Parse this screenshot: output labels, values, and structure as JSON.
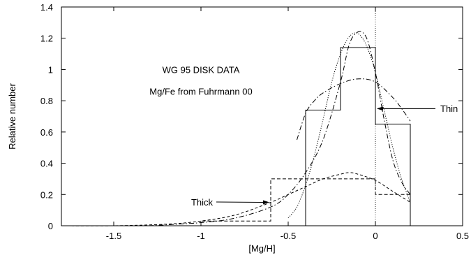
{
  "chart_data": {
    "type": "line",
    "title": "",
    "xlabel": "[Mg/H]",
    "ylabel": "Relative number",
    "xlim": [
      -1.8,
      0.5
    ],
    "ylim": [
      0,
      1.4
    ],
    "x_ticks": [
      -1.5,
      -1,
      -0.5,
      0,
      0.5
    ],
    "x_tick_labels": [
      "-1.5",
      "-1",
      "-0.5",
      "0",
      "0.5"
    ],
    "y_ticks": [
      0,
      0.2,
      0.4,
      0.6,
      0.8,
      1,
      1.2,
      1.4
    ],
    "y_tick_labels": [
      "0",
      "0.2",
      "0.4",
      "0.6",
      "0.8",
      "1",
      "1.2",
      "1.4"
    ],
    "grid": false,
    "legend": "none",
    "annotations": [
      {
        "text": "WG 95 DISK DATA"
      },
      {
        "text": "Mg/Fe from Fuhrmann 00"
      },
      {
        "text": "Thin",
        "arrow_to": [
          0.0,
          0.75
        ]
      },
      {
        "text": "Thick",
        "arrow_to": [
          -0.6,
          0.15
        ]
      }
    ],
    "reference_lines": [
      {
        "x": 0,
        "style": "dotted"
      }
    ],
    "series": [
      {
        "style": "solid-step",
        "bin_edges": [
          -0.4,
          -0.2,
          0.0,
          0.2
        ],
        "values": [
          0.74,
          1.14,
          0.65
        ]
      },
      {
        "style": "dashed-step",
        "bin_edges": [
          -1.0,
          -0.6,
          -0.4,
          -0.2,
          0.0,
          0.2
        ],
        "values": [
          0.03,
          0.3,
          0.3,
          0.3,
          0.2
        ]
      },
      {
        "style": "dotted-curve",
        "x": [
          -0.5,
          -0.45,
          -0.4,
          -0.35,
          -0.3,
          -0.25,
          -0.2,
          -0.15,
          -0.1,
          -0.05,
          0.0,
          0.05,
          0.1,
          0.15,
          0.2
        ],
        "y": [
          0.05,
          0.12,
          0.26,
          0.45,
          0.68,
          0.92,
          1.1,
          1.21,
          1.23,
          1.15,
          0.98,
          0.74,
          0.5,
          0.3,
          0.15
        ]
      },
      {
        "style": "dashdot-curve-narrow",
        "x": [
          -1.3,
          -1.0,
          -0.8,
          -0.6,
          -0.5,
          -0.4,
          -0.3,
          -0.2,
          -0.15,
          -0.1,
          -0.05,
          0.0,
          0.05,
          0.1,
          0.15,
          0.2
        ],
        "y": [
          0.0,
          0.02,
          0.05,
          0.12,
          0.2,
          0.34,
          0.55,
          0.92,
          1.16,
          1.24,
          1.2,
          0.98,
          0.68,
          0.42,
          0.28,
          0.2
        ]
      },
      {
        "style": "dashdot-curve-wide",
        "x": [
          -0.45,
          -0.4,
          -0.35,
          -0.3,
          -0.2,
          -0.1,
          0.0,
          0.1,
          0.15,
          0.2
        ],
        "y": [
          0.55,
          0.72,
          0.8,
          0.85,
          0.91,
          0.94,
          0.92,
          0.82,
          0.75,
          0.67
        ]
      },
      {
        "style": "dashed-curve",
        "x": [
          -1.8,
          -1.5,
          -1.2,
          -1.0,
          -0.8,
          -0.6,
          -0.5,
          -0.4,
          -0.3,
          -0.2,
          -0.15,
          -0.1,
          0.0,
          0.1,
          0.2
        ],
        "y": [
          0.0,
          0.0,
          0.01,
          0.03,
          0.07,
          0.15,
          0.2,
          0.25,
          0.3,
          0.33,
          0.34,
          0.33,
          0.29,
          0.22,
          0.15
        ]
      }
    ]
  }
}
